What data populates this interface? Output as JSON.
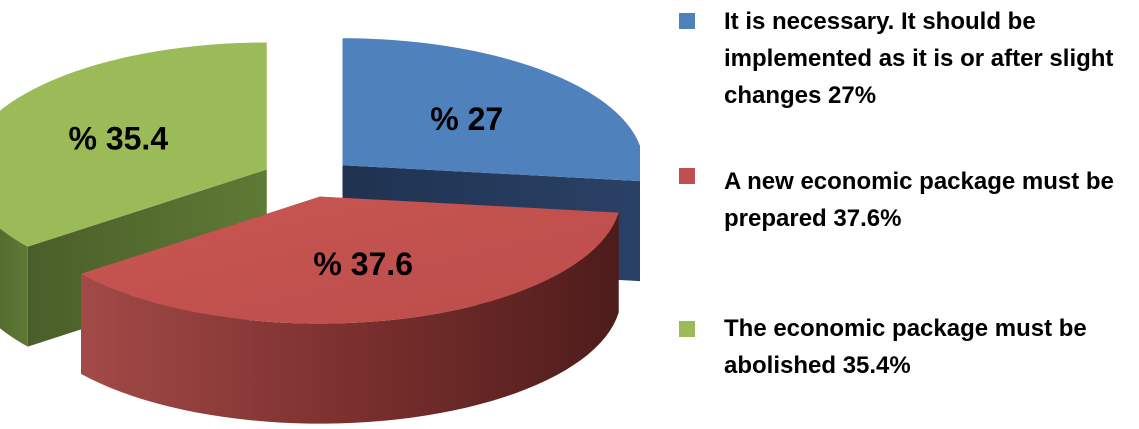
{
  "chart_data": {
    "type": "pie",
    "style": "3d-exploded",
    "slices": [
      {
        "name": "It is necessary. It should be implemented as it is or after slight changes 27%",
        "value": 27,
        "label": "% 27",
        "color": "#4F81BD"
      },
      {
        "name": "A new economic package must be prepared 37.6%",
        "value": 37.6,
        "label": "% 37.6",
        "color": "#C0504D"
      },
      {
        "name": "The economic package must be abolished 35.4%",
        "value": 35.4,
        "label": "% 35.4",
        "color": "#9BBB59"
      }
    ],
    "legend_placement": "right"
  }
}
